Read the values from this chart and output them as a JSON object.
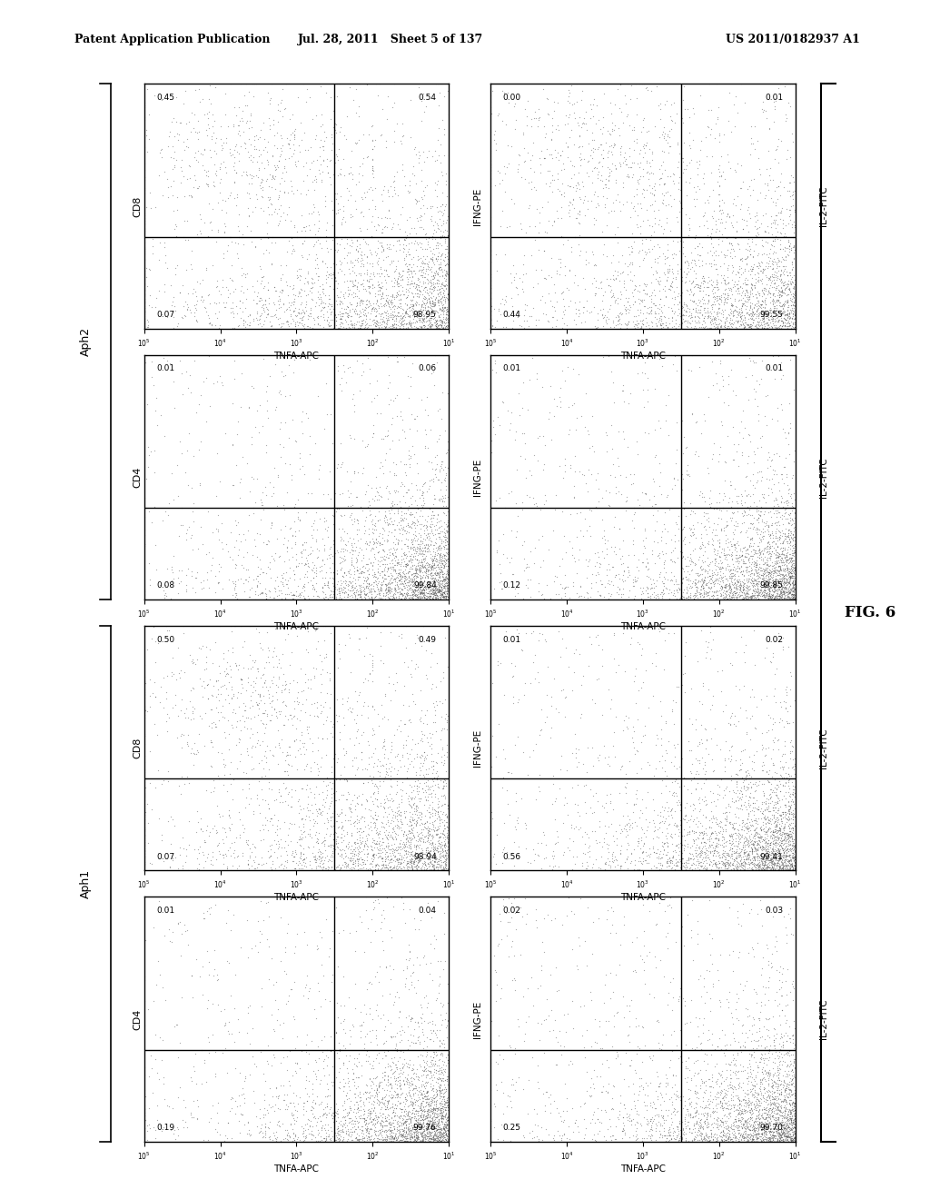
{
  "header_left": "Patent Application Publication",
  "header_middle": "Jul. 28, 2011   Sheet 5 of 137",
  "header_right": "US 2011/0182937 A1",
  "fig_label": "FIG. 6",
  "panels": [
    {
      "row": 3,
      "col": 0,
      "ylabel": "CD4",
      "xlabel": "TNFA-APC",
      "rlabel": "IFNG-PE",
      "quadrant_values": [
        "0.01",
        "0.04",
        "0.19",
        "99.76"
      ],
      "group": "Aph1",
      "dot_pattern": "lower_right_heavy"
    },
    {
      "row": 3,
      "col": 1,
      "ylabel": "",
      "xlabel": "TNFA-APC",
      "rlabel": "IL-2-FITC",
      "quadrant_values": [
        "0.02",
        "0.03",
        "0.25",
        "99.70"
      ],
      "group": "Aph1",
      "dot_pattern": "lower_right_heavy"
    },
    {
      "row": 2,
      "col": 0,
      "ylabel": "CD8",
      "xlabel": "TNFA-APC",
      "rlabel": "IFNG-PE",
      "quadrant_values": [
        "0.50",
        "0.49",
        "0.07",
        "98.94"
      ],
      "group": "Aph1",
      "dot_pattern": "lower_right_heavy_wide"
    },
    {
      "row": 2,
      "col": 1,
      "ylabel": "",
      "xlabel": "TNFA-APC",
      "rlabel": "IL-2-FITC",
      "quadrant_values": [
        "0.01",
        "0.02",
        "0.56",
        "99.41"
      ],
      "group": "Aph1",
      "dot_pattern": "lower_right_heavy"
    },
    {
      "row": 1,
      "col": 0,
      "ylabel": "CD4",
      "xlabel": "TNFA-APC",
      "rlabel": "IFNG-PE",
      "quadrant_values": [
        "0.01",
        "0.06",
        "0.08",
        "99.84"
      ],
      "group": "Aph2",
      "dot_pattern": "lower_right_heavy"
    },
    {
      "row": 1,
      "col": 1,
      "ylabel": "",
      "xlabel": "TNFA-APC",
      "rlabel": "IL-2-FITC",
      "quadrant_values": [
        "0.01",
        "0.01",
        "0.12",
        "99.85"
      ],
      "group": "Aph2",
      "dot_pattern": "lower_right_heavy"
    },
    {
      "row": 0,
      "col": 0,
      "ylabel": "CD8",
      "xlabel": "TNFA-APC",
      "rlabel": "IFNG-PE",
      "quadrant_values": [
        "0.45",
        "0.54",
        "0.07",
        "98.95"
      ],
      "group": "Aph2",
      "dot_pattern": "lower_right_heavy_wide"
    },
    {
      "row": 0,
      "col": 1,
      "ylabel": "",
      "xlabel": "TNFA-APC",
      "rlabel": "IL-2-FITC",
      "quadrant_values": [
        "0.00",
        "0.01",
        "0.44",
        "99.55"
      ],
      "group": "Aph2",
      "dot_pattern": "lower_right_heavy_wide"
    }
  ],
  "background_color": "#ffffff",
  "dot_color": "#555555",
  "gate_line_color": "#000000"
}
